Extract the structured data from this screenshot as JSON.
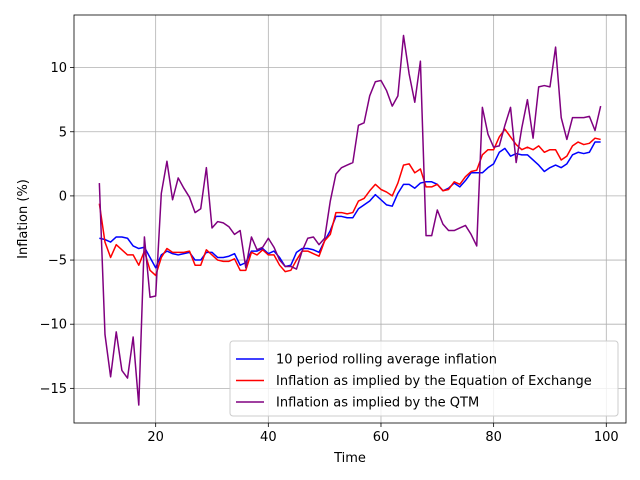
{
  "chart_data": {
    "type": "line",
    "xlabel": "Time",
    "ylabel": "Inflation (%)",
    "xlim": [
      5.5,
      103.5
    ],
    "ylim": [
      -17.7,
      14.1
    ],
    "xticks": [
      20,
      40,
      60,
      80,
      100
    ],
    "yticks": [
      -15,
      -10,
      -5,
      0,
      5,
      10
    ],
    "ytick_labels": [
      "−15",
      "−10",
      "−5",
      "0",
      "5",
      "10"
    ],
    "grid": true,
    "legend_position": "lower-right",
    "series": [
      {
        "name": "10 period rolling average inflation",
        "color": "#0000ff",
        "x": [
          10,
          11,
          12,
          13,
          14,
          15,
          16,
          17,
          18,
          19,
          20,
          21,
          22,
          23,
          24,
          25,
          26,
          27,
          28,
          29,
          30,
          31,
          32,
          33,
          34,
          35,
          36,
          37,
          38,
          39,
          40,
          41,
          42,
          43,
          44,
          45,
          46,
          47,
          48,
          49,
          50,
          51,
          52,
          53,
          54,
          55,
          56,
          57,
          58,
          59,
          60,
          61,
          62,
          63,
          64,
          65,
          66,
          67,
          68,
          69,
          70,
          71,
          72,
          73,
          74,
          75,
          76,
          77,
          78,
          79,
          80,
          81,
          82,
          83,
          84,
          85,
          86,
          87,
          88,
          89,
          90,
          91,
          92,
          93,
          94,
          95,
          96,
          97,
          98,
          99
        ],
        "y": [
          -3.3,
          -3.4,
          -3.6,
          -3.2,
          -3.2,
          -3.3,
          -3.9,
          -4.1,
          -4.0,
          -4.8,
          -5.6,
          -4.6,
          -4.3,
          -4.5,
          -4.6,
          -4.5,
          -4.4,
          -5.0,
          -5.0,
          -4.4,
          -4.4,
          -4.8,
          -4.8,
          -4.7,
          -4.5,
          -5.4,
          -5.2,
          -4.3,
          -4.3,
          -4.1,
          -4.5,
          -4.3,
          -4.8,
          -5.5,
          -5.4,
          -4.4,
          -4.1,
          -4.1,
          -4.2,
          -4.4,
          -3.5,
          -2.7,
          -1.6,
          -1.6,
          -1.7,
          -1.7,
          -1.0,
          -0.7,
          -0.4,
          0.1,
          -0.3,
          -0.7,
          -0.8,
          0.2,
          0.9,
          0.9,
          0.6,
          1.0,
          1.1,
          1.1,
          0.9,
          0.4,
          0.6,
          1.0,
          0.7,
          1.2,
          1.8,
          1.8,
          1.8,
          2.2,
          2.5,
          3.4,
          3.7,
          3.1,
          3.3,
          3.2,
          3.2,
          2.8,
          2.4,
          1.9,
          2.2,
          2.4,
          2.2,
          2.5,
          3.2,
          3.4,
          3.3,
          3.4,
          4.2,
          4.2
        ]
      },
      {
        "name": "Inflation as implied by the Equation of Exchange",
        "color": "#ff0000",
        "x": [
          10,
          11,
          12,
          13,
          14,
          15,
          16,
          17,
          18,
          19,
          20,
          21,
          22,
          23,
          24,
          25,
          26,
          27,
          28,
          29,
          30,
          31,
          32,
          33,
          34,
          35,
          36,
          37,
          38,
          39,
          40,
          41,
          42,
          43,
          44,
          45,
          46,
          47,
          48,
          49,
          50,
          51,
          52,
          53,
          54,
          55,
          56,
          57,
          58,
          59,
          60,
          61,
          62,
          63,
          64,
          65,
          66,
          67,
          68,
          69,
          70,
          71,
          72,
          73,
          74,
          75,
          76,
          77,
          78,
          79,
          80,
          81,
          82,
          83,
          84,
          85,
          86,
          87,
          88,
          89,
          90,
          91,
          92,
          93,
          94,
          95,
          96,
          97,
          98,
          99
        ],
        "y": [
          -0.6,
          -3.6,
          -4.8,
          -3.8,
          -4.2,
          -4.6,
          -4.6,
          -5.4,
          -4.3,
          -5.8,
          -6.2,
          -4.8,
          -4.1,
          -4.4,
          -4.4,
          -4.4,
          -4.3,
          -5.4,
          -5.4,
          -4.2,
          -4.6,
          -5.0,
          -5.1,
          -5.1,
          -4.9,
          -5.8,
          -5.8,
          -4.4,
          -4.6,
          -4.2,
          -4.6,
          -4.6,
          -5.4,
          -5.9,
          -5.8,
          -5.0,
          -4.3,
          -4.3,
          -4.5,
          -4.7,
          -3.5,
          -3.0,
          -1.3,
          -1.3,
          -1.4,
          -1.3,
          -0.4,
          -0.2,
          0.4,
          0.9,
          0.5,
          0.3,
          0.0,
          1.0,
          2.4,
          2.5,
          1.8,
          2.1,
          0.7,
          0.7,
          0.9,
          0.4,
          0.5,
          1.1,
          0.9,
          1.5,
          1.9,
          2.0,
          3.2,
          3.6,
          3.6,
          4.6,
          5.2,
          4.6,
          4.0,
          3.6,
          3.8,
          3.6,
          3.9,
          3.4,
          3.6,
          3.6,
          2.8,
          3.1,
          3.9,
          4.2,
          4.0,
          4.1,
          4.5,
          4.4
        ]
      },
      {
        "name": "Inflation as implied by the QTM",
        "color": "#800080",
        "x": [
          10,
          11,
          12,
          13,
          14,
          15,
          16,
          17,
          18,
          19,
          20,
          21,
          22,
          23,
          24,
          25,
          26,
          27,
          28,
          29,
          30,
          31,
          32,
          33,
          34,
          35,
          36,
          37,
          38,
          39,
          40,
          41,
          42,
          43,
          44,
          45,
          46,
          47,
          48,
          49,
          50,
          51,
          52,
          53,
          54,
          55,
          56,
          57,
          58,
          59,
          60,
          61,
          62,
          63,
          64,
          65,
          66,
          67,
          68,
          69,
          70,
          71,
          72,
          73,
          74,
          75,
          76,
          77,
          78,
          79,
          80,
          81,
          82,
          83,
          84,
          85,
          86,
          87,
          88,
          89,
          90,
          91,
          92,
          93,
          94,
          95,
          96,
          97,
          98,
          99
        ],
        "y": [
          1.0,
          -10.8,
          -14.1,
          -10.6,
          -13.6,
          -14.2,
          -11.0,
          -16.3,
          -3.2,
          -7.9,
          -7.8,
          0.2,
          2.7,
          -0.3,
          1.4,
          0.6,
          -0.1,
          -1.3,
          -1.0,
          2.2,
          -2.5,
          -2.0,
          -2.1,
          -2.4,
          -3.0,
          -2.7,
          -5.6,
          -3.2,
          -4.2,
          -4.0,
          -3.3,
          -4.0,
          -5.0,
          -5.5,
          -5.5,
          -5.7,
          -4.3,
          -3.3,
          -3.2,
          -3.8,
          -3.3,
          -0.4,
          1.7,
          2.2,
          2.4,
          2.6,
          5.5,
          5.7,
          7.8,
          8.9,
          9.0,
          8.2,
          7.0,
          7.8,
          12.5,
          9.5,
          7.3,
          10.5,
          -3.1,
          -3.1,
          -1.1,
          -2.2,
          -2.7,
          -2.7,
          -2.5,
          -2.3,
          -3.0,
          -3.9,
          6.9,
          4.8,
          3.8,
          3.9,
          5.5,
          6.9,
          2.6,
          5.3,
          7.5,
          4.5,
          8.5,
          8.6,
          8.5,
          11.6,
          6.1,
          4.4,
          6.1,
          6.1,
          6.1,
          6.2,
          5.1,
          7.0
        ]
      }
    ]
  }
}
